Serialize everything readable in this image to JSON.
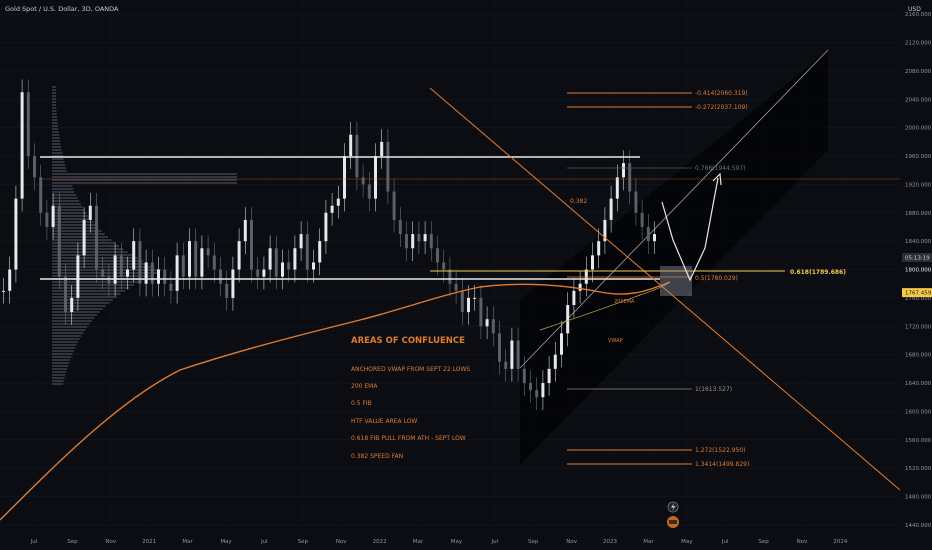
{
  "header": {
    "symbol_label": "Gold Spot / U.S. Dollar, 3D, OANDA"
  },
  "price_scale": {
    "currency": "USD",
    "ticks": [
      "2160.000",
      "2120.000",
      "2080.000",
      "2040.000",
      "2000.000",
      "1960.000",
      "1920.000",
      "1880.000",
      "1840.000",
      "1800.000",
      "1760.000",
      "1720.000",
      "1680.000",
      "1640.000",
      "1600.000",
      "1560.000",
      "1520.000",
      "1480.000",
      "1440.000"
    ],
    "tick_values": [
      2160,
      2120,
      2080,
      2040,
      2000,
      1960,
      1920,
      1880,
      1840,
      1800,
      1760,
      1720,
      1680,
      1640,
      1600,
      1560,
      1520,
      1480,
      1440
    ],
    "ylim": [
      1430,
      2180
    ],
    "last_price": {
      "label": "1767.459",
      "value": 1767.459,
      "color": "#f7c948"
    },
    "timer": {
      "label": "05:13:19",
      "value": 1817
    },
    "fib_tag": {
      "label": "1800.000",
      "value": 1800
    }
  },
  "time_axis": {
    "labels": [
      "Jul",
      "Sep",
      "Nov",
      "2021",
      "Mar",
      "May",
      "Jul",
      "Sep",
      "Nov",
      "2022",
      "Mar",
      "May",
      "Jul",
      "Sep",
      "Nov",
      "2023",
      "Mar",
      "May",
      "Jul",
      "Sep",
      "Nov",
      "2024"
    ],
    "x_months": [
      0,
      2,
      4,
      6,
      8,
      10,
      12,
      14,
      16,
      18,
      20,
      22,
      24,
      26,
      28,
      30,
      32,
      34,
      36,
      38,
      40,
      42
    ]
  },
  "fib_levels": [
    {
      "label": "0.786(1944.597)",
      "value": 1944.597
    },
    {
      "label": "0.5(1780.029)",
      "value": 1780.029
    },
    {
      "label": "0.618(1789.686)",
      "value": 1789.686
    },
    {
      "label": "-0.272(2037.109)",
      "value": 2037.109
    },
    {
      "label": "-0.414(2060.319)",
      "value": 2060.319
    },
    {
      "label": "1(1613.527)",
      "value": 1613.527
    },
    {
      "label": "1.272(1522.950)",
      "value": 1522.95
    },
    {
      "label": "1.3414(1499.829)",
      "value": 1499.829
    }
  ],
  "annotations": {
    "speed_fan": "0.382",
    "ema_tag": "200EMA",
    "vwap_tag": "VWAP"
  },
  "confluence": {
    "title": "AREAS OF CONFLUENCE",
    "items": [
      "ANCHORED VWAP FROM SEPT 22 LOWS",
      "200 EMA",
      "0.5 FIB",
      "HTF VALUE AREA LOW",
      "0.618 FIB PULL FROM  ATH - SEPT LOW",
      "0.382 SPEED FAN"
    ]
  },
  "chart_data": {
    "type": "line",
    "series": [
      {
        "values": [
          1770,
          1800,
          1900,
          2050,
          1960,
          1930,
          1880,
          1860,
          1890,
          1790,
          1740,
          1760,
          1820,
          1870,
          1890,
          1800,
          1790,
          1780,
          1820,
          1790,
          1800,
          1840,
          1780,
          1810,
          1780,
          1800,
          1780,
          1770,
          1820,
          1790,
          1840,
          1790,
          1830,
          1820,
          1800,
          1780,
          1760,
          1800,
          1840,
          1870,
          1800,
          1790,
          1800,
          1830,
          1790,
          1810,
          1800,
          1830,
          1850,
          1800,
          1810,
          1840,
          1880,
          1890,
          1900,
          1960,
          1990,
          1930,
          1920,
          1900,
          1960,
          1980,
          1910,
          1870,
          1850,
          1830,
          1850,
          1840,
          1850,
          1830,
          1810,
          1800,
          1780,
          1770,
          1740,
          1760,
          1760,
          1720,
          1730,
          1710,
          1670,
          1660,
          1700,
          1660,
          1640,
          1630,
          1620,
          1640,
          1660,
          1680,
          1710,
          1750,
          1770,
          1780,
          1800,
          1820,
          1840,
          1870,
          1900,
          1930,
          1950,
          1910,
          1880,
          1860,
          1840,
          1850
        ]
      }
    ],
    "ylim": [
      1430,
      2180
    ]
  }
}
